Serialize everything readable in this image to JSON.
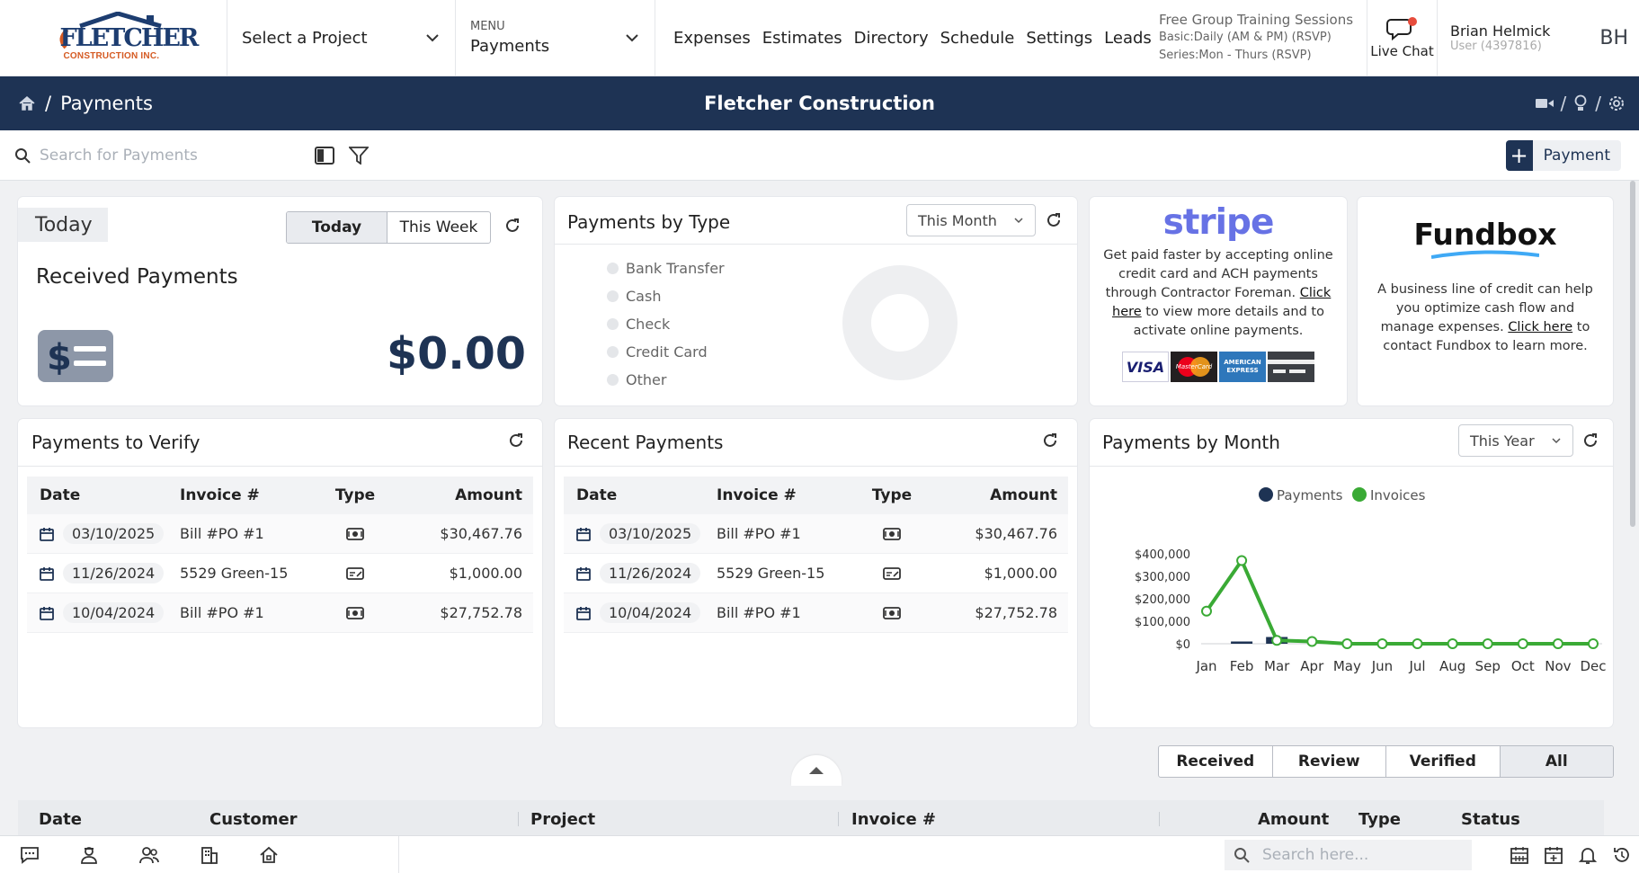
{
  "header": {
    "logo_text": "FLETCHER",
    "logo_sub": "CONSTRUCTION INC.",
    "project_select": "Select a Project",
    "menu_label": "MENU",
    "menu_value": "Payments",
    "quick_links": [
      "Expenses",
      "Estimates",
      "Directory",
      "Schedule",
      "Settings",
      "Leads"
    ],
    "training": {
      "title": "Free Group Training Sessions",
      "line1": "Basic:Daily (AM & PM) (RSVP)",
      "line2": "Series:Mon - Thurs (RSVP)"
    },
    "live_chat": "Live Chat",
    "user_name": "Brian Helmick",
    "user_id": "User (4397816)",
    "user_initials": "BH"
  },
  "nav": {
    "breadcrumb_sep": "/",
    "page": "Payments",
    "company": "Fletcher Construction"
  },
  "toolbar": {
    "search_placeholder": "Search for Payments",
    "add_label": "Payment"
  },
  "today_card": {
    "tab": "Today",
    "seg_today": "Today",
    "seg_week": "This Week",
    "title": "Received Payments",
    "amount": "$0.00"
  },
  "type_card": {
    "title": "Payments by Type",
    "period": "This Month",
    "legend": [
      "Bank Transfer",
      "Cash",
      "Check",
      "Credit Card",
      "Other"
    ]
  },
  "stripe_card": {
    "brand": "stripe",
    "text_before": "Get paid faster by accepting online credit card and ACH payments through Contractor Foreman.",
    "link": "Click here",
    "text_after": "to view more details and to activate online payments.",
    "cards": [
      "VISA",
      "MasterCard",
      "AMERICAN EXPRESS"
    ]
  },
  "fundbox_card": {
    "brand": "Fundbox",
    "text_before": "A business line of credit can help you optimize cash flow and manage expenses.",
    "link": "Click here",
    "text_after": "to contact Fundbox to learn more."
  },
  "verify_card": {
    "title": "Payments to Verify",
    "columns": [
      "Date",
      "Invoice #",
      "Type",
      "Amount"
    ],
    "rows": [
      {
        "date": "03/10/2025",
        "invoice": "Bill #PO #1",
        "type": "cash-icon",
        "amount": "$30,467.76"
      },
      {
        "date": "11/26/2024",
        "invoice": "5529 Green-15",
        "type": "check-icon",
        "amount": "$1,000.00"
      },
      {
        "date": "10/04/2024",
        "invoice": "Bill #PO #1",
        "type": "cash-icon",
        "amount": "$27,752.78"
      }
    ]
  },
  "recent_card": {
    "title": "Recent Payments",
    "columns": [
      "Date",
      "Invoice #",
      "Type",
      "Amount"
    ],
    "rows": [
      {
        "date": "03/10/2025",
        "invoice": "Bill #PO #1",
        "type": "cash-icon",
        "amount": "$30,467.76"
      },
      {
        "date": "11/26/2024",
        "invoice": "5529 Green-15",
        "type": "check-icon",
        "amount": "$1,000.00"
      },
      {
        "date": "10/04/2024",
        "invoice": "Bill #PO #1",
        "type": "cash-icon",
        "amount": "$27,752.78"
      }
    ]
  },
  "month_card": {
    "title": "Payments by Month",
    "period": "This Year"
  },
  "chart_data": {
    "type": "line",
    "categories": [
      "Jan",
      "Feb",
      "Mar",
      "Apr",
      "May",
      "Jun",
      "Jul",
      "Aug",
      "Sep",
      "Oct",
      "Nov",
      "Dec"
    ],
    "series": [
      {
        "name": "Payments",
        "kind": "bar",
        "color": "#1e3354",
        "values": [
          0,
          10000,
          30000,
          0,
          0,
          0,
          0,
          0,
          0,
          0,
          0,
          0
        ]
      },
      {
        "name": "Invoices",
        "kind": "line",
        "color": "#3aaa35",
        "values": [
          145000,
          370000,
          15000,
          10000,
          0,
          0,
          0,
          0,
          0,
          0,
          0,
          0
        ]
      }
    ],
    "y_ticks": [
      "$0",
      "$100,000",
      "$200,000",
      "$300,000",
      "$400,000"
    ],
    "ylim": [
      0,
      400000
    ],
    "legend_position": "top"
  },
  "bottom": {
    "filters": [
      "Received",
      "Review",
      "Verified",
      "All"
    ],
    "active_filter": "All",
    "columns": [
      "Date",
      "Customer",
      "Project",
      "Invoice #",
      "Amount",
      "Type",
      "Status"
    ]
  },
  "footer": {
    "search_placeholder": "Search here..."
  },
  "colors": {
    "navy": "#1e3354",
    "green": "#3aaa35",
    "stripe": "#6772e5",
    "accent_star": "#f05a22"
  }
}
